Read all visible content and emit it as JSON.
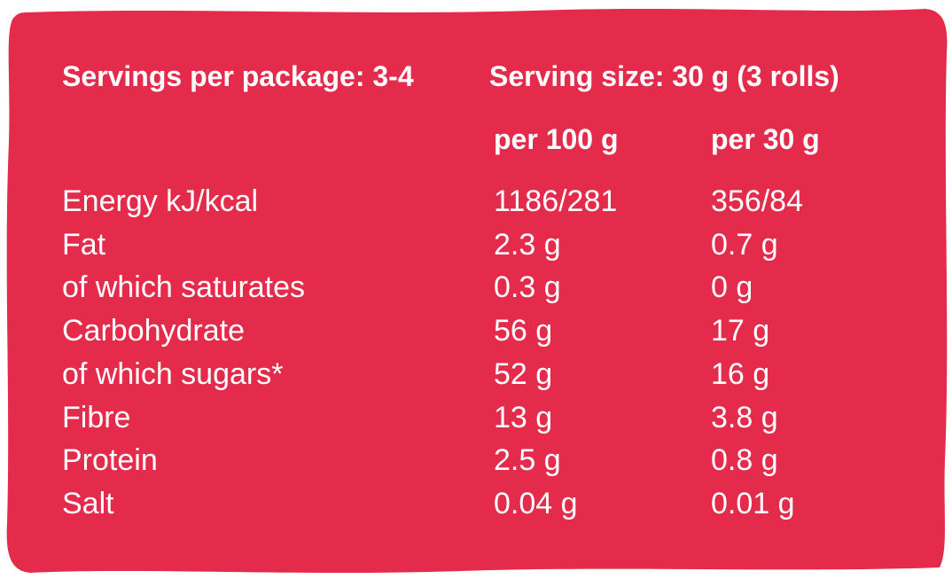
{
  "header": {
    "servings": "Servings per package: 3-4",
    "serving_size": "Serving size: 30 g (3 rolls)"
  },
  "table": {
    "columns": [
      "per 100 g",
      "per 30 g"
    ],
    "rows": [
      [
        "Energy kJ/kcal",
        "1186/281",
        "356/84"
      ],
      [
        "Fat",
        "2.3 g",
        "0.7 g"
      ],
      [
        "of which saturates",
        "0.3 g",
        "0 g"
      ],
      [
        "Carbohydrate",
        "56 g",
        "17 g"
      ],
      [
        "of which sugars*",
        "52 g",
        "16 g"
      ],
      [
        "Fibre",
        "13 g",
        "3.8 g"
      ],
      [
        "Protein",
        "2.5 g",
        "0.8 g"
      ],
      [
        "Salt",
        "0.04 g",
        "0.01 g"
      ]
    ]
  }
}
